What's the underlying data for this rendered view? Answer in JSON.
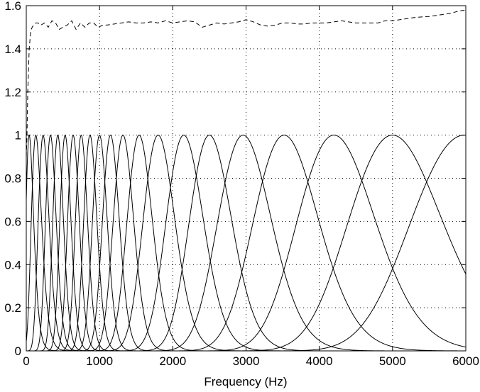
{
  "chart_data": {
    "type": "line",
    "title": "",
    "xlabel": "Frequency (Hz)",
    "ylabel": "",
    "xlim": [
      0,
      6000
    ],
    "ylim": [
      0,
      1.6
    ],
    "grid": true,
    "xticks": [
      0,
      1000,
      2000,
      3000,
      4000,
      5000,
      6000
    ],
    "xtick_labels": [
      "0",
      "1000",
      "2000",
      "3000",
      "4000",
      "5000",
      "6000"
    ],
    "yticks": [
      0,
      0.2,
      0.4,
      0.6,
      0.8,
      1,
      1.2,
      1.4,
      1.6
    ],
    "ytick_labels": [
      "0",
      "0.2",
      "0.4",
      "0.6",
      "0.8",
      "1",
      "1.2",
      "1.4",
      "1.6"
    ],
    "filter_peaks_hz": [
      40,
      130,
      230,
      330,
      430,
      530,
      640,
      750,
      870,
      1000,
      1150,
      1320,
      1540,
      1800,
      2150,
      2500,
      2960,
      3520,
      4200,
      5000,
      5980
    ],
    "filter_peak_value": 1.0,
    "series": [
      {
        "style": "dashed",
        "x": [
          0,
          10,
          20,
          40,
          60,
          80,
          100,
          130,
          160,
          200,
          250,
          300,
          350,
          400,
          450,
          500,
          560,
          620,
          680,
          740,
          800,
          860,
          920,
          980,
          1050,
          1100,
          1200,
          1300,
          1400,
          1500,
          1600,
          1700,
          1800,
          1900,
          2000,
          2100,
          2200,
          2300,
          2400,
          2500,
          2600,
          2700,
          2800,
          2900,
          3000,
          3100,
          3200,
          3300,
          3400,
          3500,
          3600,
          3700,
          3800,
          3900,
          4000,
          4100,
          4200,
          4300,
          4400,
          4500,
          4600,
          4700,
          4800,
          4900,
          5000,
          5100,
          5200,
          5300,
          5400,
          5500,
          5600,
          5700,
          5800,
          5900,
          6000
        ],
        "y": [
          0.9,
          1.0,
          1.2,
          1.4,
          1.48,
          1.5,
          1.51,
          1.52,
          1.52,
          1.51,
          1.52,
          1.5,
          1.53,
          1.52,
          1.49,
          1.5,
          1.51,
          1.53,
          1.49,
          1.52,
          1.5,
          1.52,
          1.52,
          1.5,
          1.51,
          1.51,
          1.515,
          1.52,
          1.525,
          1.52,
          1.52,
          1.525,
          1.52,
          1.53,
          1.52,
          1.525,
          1.53,
          1.525,
          1.5,
          1.51,
          1.52,
          1.515,
          1.52,
          1.525,
          1.535,
          1.525,
          1.51,
          1.505,
          1.51,
          1.52,
          1.52,
          1.515,
          1.515,
          1.52,
          1.52,
          1.52,
          1.525,
          1.53,
          1.525,
          1.52,
          1.52,
          1.52,
          1.52,
          1.53,
          1.53,
          1.535,
          1.54,
          1.545,
          1.548,
          1.55,
          1.555,
          1.56,
          1.565,
          1.575,
          1.58
        ]
      }
    ]
  }
}
